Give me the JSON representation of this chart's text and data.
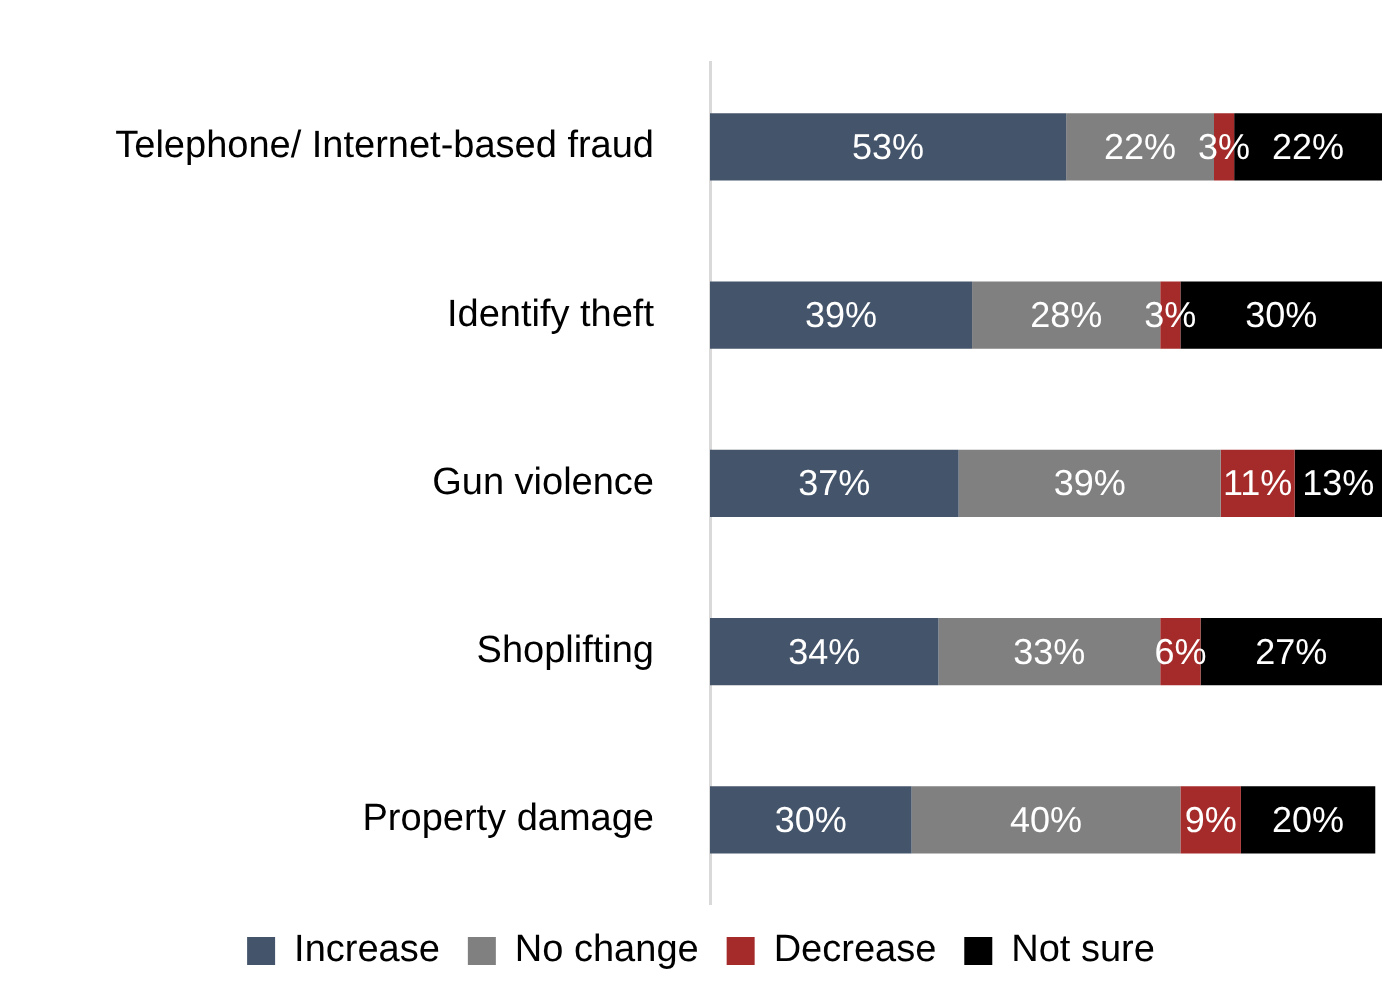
{
  "chart_data": {
    "type": "bar",
    "orientation": "horizontal",
    "stacked": true,
    "legend": "bottom",
    "categories": [
      "Telephone/ Internet-based fraud",
      "Identify theft",
      "Gun violence",
      "Shoplifting",
      "Property damage"
    ],
    "series": [
      {
        "name": "Increase",
        "color": "#44546a",
        "values": [
          53,
          39,
          37,
          34,
          30
        ],
        "value_labels": [
          "53%",
          "39%",
          "37%",
          "34%",
          "30%"
        ]
      },
      {
        "name": "No change",
        "color": "#808080",
        "values": [
          22,
          28,
          39,
          33,
          40
        ],
        "value_labels": [
          "22%",
          "28%",
          "39%",
          "33%",
          "40%"
        ]
      },
      {
        "name": "Decrease",
        "color": "#a52a2a",
        "values": [
          3,
          3,
          11,
          6,
          9
        ],
        "value_labels": [
          "3%",
          "3%",
          "11%",
          "6%",
          "9%"
        ]
      },
      {
        "name": "Not sure",
        "color": "#000000",
        "values": [
          22,
          30,
          13,
          27,
          20
        ],
        "value_labels": [
          "22%",
          "30%",
          "13%",
          "27%",
          "20%"
        ]
      }
    ]
  }
}
